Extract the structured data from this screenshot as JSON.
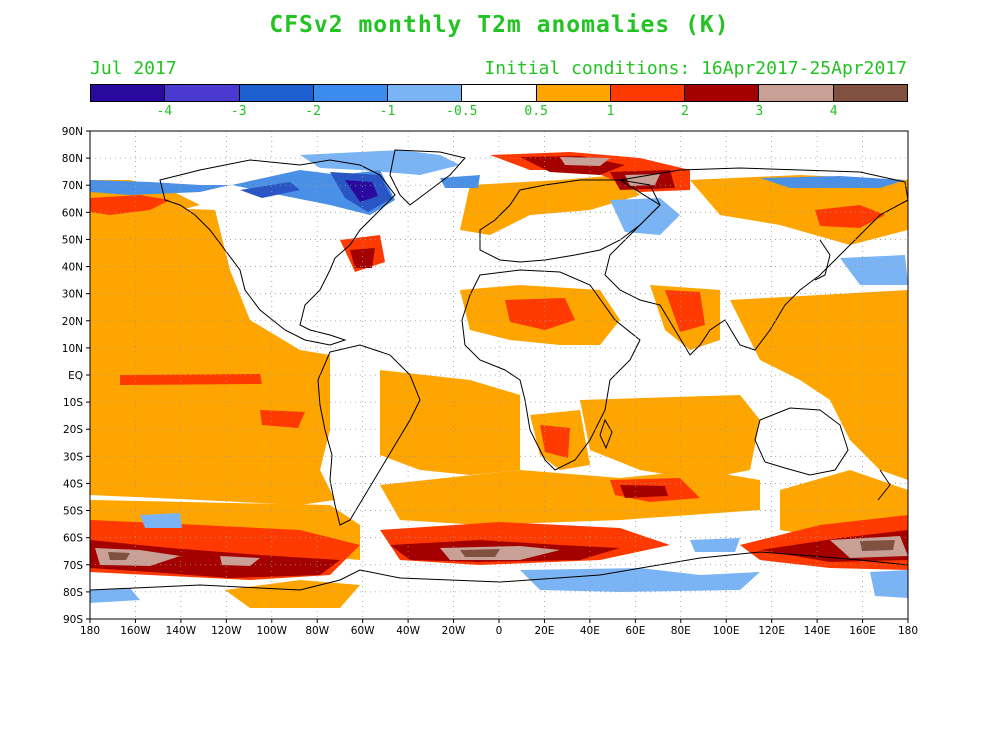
{
  "title": "CFSv2 monthly T2m anomalies (K)",
  "valid_label": "Jul 2017",
  "init_label": "Initial conditions: 16Apr2017-25Apr2017",
  "colors": {
    "text_green": "#22c322",
    "anom_pos": "#ffa500",
    "anom_pos_strong": "#ff3a00",
    "anom_pos_vstrong": "#a50000",
    "anom_pos_extreme": "#c8a096",
    "anom_neg_mild": "#7ab4f5",
    "anom_neg": "#4a90e6",
    "anom_neg_strong": "#2a55c4"
  },
  "colorbar": {
    "segments": [
      "#2a0a9e",
      "#4a3ad0",
      "#1e60d0",
      "#3c8cf0",
      "#7ab4f5",
      "#ffffff",
      "#ffa500",
      "#ff3a00",
      "#a50000",
      "#c8a096",
      "#805040"
    ],
    "labels": [
      "-4",
      "-3",
      "-2",
      "-1",
      "-0.5",
      "0.5",
      "1",
      "2",
      "3",
      "4"
    ]
  },
  "axes": {
    "lat_labels": [
      "90N",
      "80N",
      "70N",
      "60N",
      "50N",
      "40N",
      "30N",
      "20N",
      "10N",
      "EQ",
      "10S",
      "20S",
      "30S",
      "40S",
      "50S",
      "60S",
      "70S",
      "80S",
      "90S"
    ],
    "lon_labels": [
      "180",
      "160W",
      "140W",
      "120W",
      "100W",
      "80W",
      "60W",
      "40W",
      "20W",
      "0",
      "20E",
      "40E",
      "60E",
      "80E",
      "100E",
      "120E",
      "140E",
      "160E",
      "180"
    ],
    "lat_range": [
      -90,
      90
    ],
    "lon_range": [
      -180,
      180
    ],
    "grid": "dotted"
  }
}
